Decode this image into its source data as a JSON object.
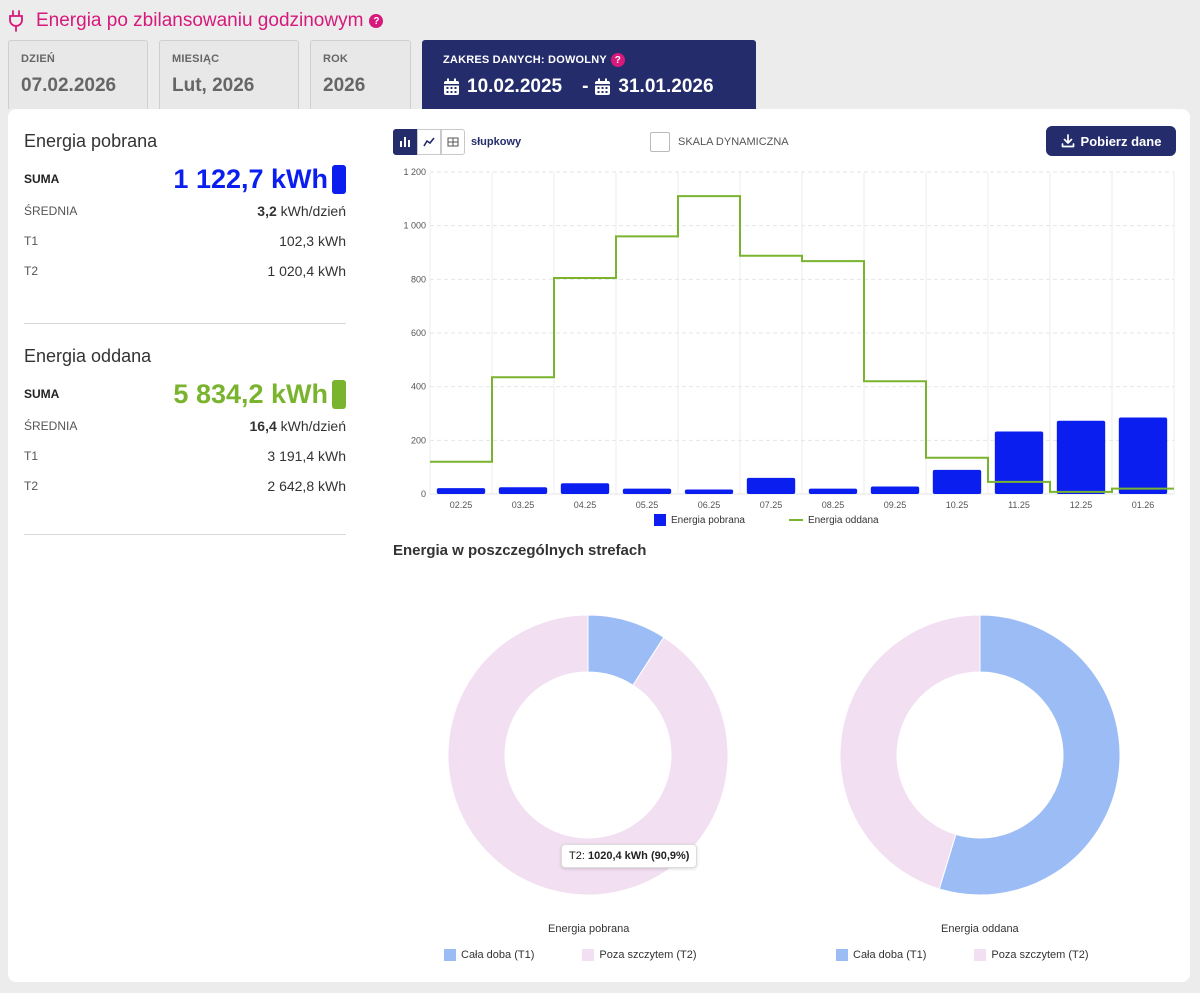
{
  "header": {
    "title": "Energia po zbilansowaniu godzinowym",
    "help_mark": "?"
  },
  "tabs": {
    "day": {
      "label": "DZIEŃ",
      "value": "07.02.2026"
    },
    "month": {
      "label": "MIESIĄC",
      "value": "Lut, 2026"
    },
    "year": {
      "label": "ROK",
      "value": "2026"
    },
    "range": {
      "label": "ZAKRES DANYCH: DOWOLNY",
      "from": "10.02.2025",
      "dash": "-",
      "to": "31.01.2026"
    }
  },
  "stats": {
    "consumed": {
      "title": "Energia pobrana",
      "sum_label": "SUMA",
      "sum_value": "1 122,7 kWh",
      "avg_label": "ŚREDNIA",
      "avg_value": "3,2",
      "avg_unit": " kWh/dzień",
      "t1_label": "T1",
      "t1_value": "102,3 kWh",
      "t2_label": "T2",
      "t2_value": "1 020,4 kWh",
      "color": "#0a1ef0"
    },
    "produced": {
      "title": "Energia oddana",
      "sum_label": "SUMA",
      "sum_value": "5 834,2 kWh",
      "avg_label": "ŚREDNIA",
      "avg_value": "16,4",
      "avg_unit": " kWh/dzień",
      "t1_label": "T1",
      "t1_value": "3 191,4 kWh",
      "t2_label": "T2",
      "t2_value": "2 642,8 kWh",
      "color": "#7ab32e"
    }
  },
  "toolbar": {
    "mode_label": "słupkowy",
    "dynamic_scale_label": "SKALA DYNAMICZNA",
    "download_label": "Pobierz dane",
    "modes": [
      "bar-chart-icon",
      "line-chart-icon",
      "table-icon"
    ]
  },
  "chart_data": {
    "type": "bar",
    "categories": [
      "02.25",
      "03.25",
      "04.25",
      "05.25",
      "06.25",
      "07.25",
      "08.25",
      "09.25",
      "10.25",
      "11.25",
      "12.25",
      "01.26"
    ],
    "series": [
      {
        "name": "Energia pobrana",
        "kind": "bar",
        "color": "#0a1ef0",
        "values": [
          22,
          25,
          40,
          20,
          17,
          60,
          20,
          28,
          90,
          233,
          273,
          285
        ]
      },
      {
        "name": "Energia oddana",
        "kind": "step-line",
        "color": "#7ab32e",
        "values": [
          120,
          435,
          805,
          960,
          1110,
          888,
          868,
          420,
          135,
          45,
          8,
          20
        ]
      }
    ],
    "ylim": [
      0,
      1200
    ],
    "yticks": [
      0,
      200,
      400,
      600,
      800,
      1000,
      1200
    ],
    "ytick_labels": [
      "0",
      "200",
      "400",
      "600",
      "800",
      "1 000",
      "1 200"
    ],
    "legend": [
      "Energia pobrana",
      "Energia oddana"
    ]
  },
  "zones": {
    "title": "Energia w poszczególnych strefach",
    "colors": {
      "t1": "#9cbcf5",
      "t2": "#f2dff2"
    },
    "legend_t1": "Cała doba (T1)",
    "legend_t2": "Poza szczytem (T2)",
    "consumed": {
      "title": "Energia pobrana",
      "t1_value": 102.3,
      "t2_value": 1020.4
    },
    "produced": {
      "title": "Energia oddana",
      "t1_value": 3191.4,
      "t2_value": 2642.8
    },
    "tooltip": {
      "label": "T2:",
      "value": "1020,4 kWh (90,9%)"
    }
  }
}
